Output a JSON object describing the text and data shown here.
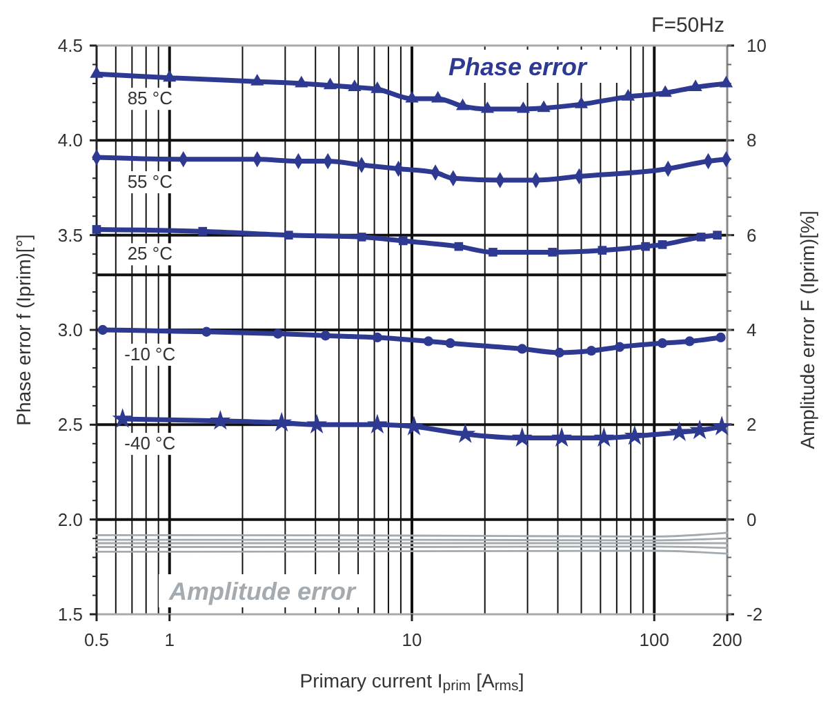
{
  "chart_data": {
    "type": "line",
    "xlabel": "Primary current I$_{prim}$ [A$_{rms}$]",
    "ylabel": "Phase error f (Iprim)[°]",
    "y2label": "Amplitude error F (Iprim)[%]",
    "log": "x",
    "xlim": [
      0.5,
      200
    ],
    "xticks": [
      0.5,
      1,
      10,
      100,
      200
    ],
    "ylim": [
      1.5,
      4.5
    ],
    "yticks": [
      1.5,
      {
        "value": 2,
        "label": "2.0"
      },
      2.5,
      {
        "value": 3,
        "label": "3.0"
      },
      3.5,
      {
        "value": 4,
        "label": "4.0"
      },
      4.5
    ],
    "y2lim": [
      -2,
      10
    ],
    "y2ticks": [
      -2,
      0,
      2,
      4,
      6,
      8,
      10
    ],
    "grid": true,
    "line_style": "solid",
    "ref_lines": [
      {
        "axis": "y",
        "value": 3.29
      }
    ],
    "annotations": [
      "F=50Hz",
      "Phase error",
      "Amplitude error"
    ],
    "series": [
      {
        "name": "85 °C",
        "color": "#2e3a92",
        "marker": "triangle",
        "x": [
          0.5,
          1,
          2.3,
          3.5,
          4.6,
          5.8,
          7.2,
          10,
          12.8,
          16.2,
          20.5,
          28.8,
          35,
          50,
          78,
          111,
          148,
          198
        ],
        "values": [
          4.35,
          4.33,
          4.31,
          4.3,
          4.29,
          4.28,
          4.27,
          4.22,
          4.22,
          4.18,
          4.165,
          4.165,
          4.17,
          4.19,
          4.23,
          4.25,
          4.28,
          4.3
        ]
      },
      {
        "name": "55 °C",
        "color": "#2e3a92",
        "marker": "diamond",
        "x": [
          0.5,
          1.14,
          2.3,
          3.4,
          4.5,
          6.2,
          8.8,
          12.5,
          14.8,
          23.1,
          32.5,
          49,
          114,
          167,
          198
        ],
        "values": [
          3.91,
          3.9,
          3.9,
          3.89,
          3.89,
          3.87,
          3.85,
          3.83,
          3.8,
          3.79,
          3.79,
          3.81,
          3.85,
          3.89,
          3.9
        ]
      },
      {
        "name": "25 °C",
        "color": "#2e3a92",
        "marker": "square",
        "x": [
          0.5,
          1.37,
          3.1,
          6.2,
          9.2,
          15.6,
          21.6,
          38,
          61,
          92,
          108,
          156,
          182
        ],
        "values": [
          3.53,
          3.52,
          3.5,
          3.49,
          3.47,
          3.44,
          3.41,
          3.41,
          3.42,
          3.44,
          3.45,
          3.49,
          3.5
        ]
      },
      {
        "name": "-10 °C",
        "color": "#2e3a92",
        "marker": "circle",
        "x": [
          0.53,
          1.42,
          2.8,
          4.4,
          7.2,
          11.7,
          14.4,
          28.5,
          40.6,
          55,
          72,
          108,
          140,
          188
        ],
        "values": [
          3.0,
          2.99,
          2.98,
          2.97,
          2.96,
          2.94,
          2.93,
          2.9,
          2.88,
          2.89,
          2.91,
          2.93,
          2.94,
          2.96
        ]
      },
      {
        "name": "-40 °C",
        "color": "#2e3a92",
        "marker": "star",
        "x": [
          0.64,
          1.62,
          2.9,
          4.05,
          7.2,
          10.2,
          16.6,
          28.5,
          41.5,
          62,
          83,
          127,
          154,
          190
        ],
        "values": [
          2.53,
          2.52,
          2.51,
          2.5,
          2.5,
          2.49,
          2.45,
          2.43,
          2.43,
          2.43,
          2.44,
          2.46,
          2.47,
          2.49
        ]
      },
      {
        "color": "#a3abb1",
        "axis": "y2",
        "marker": "none",
        "x": [
          0.5,
          1,
          10,
          100,
          200
        ],
        "values": [
          -0.33,
          -0.33,
          -0.34,
          -0.36,
          -0.28
        ]
      },
      {
        "color": "#a3abb1",
        "axis": "y2",
        "marker": "none",
        "x": [
          0.5,
          1,
          10,
          100,
          200
        ],
        "values": [
          -0.43,
          -0.43,
          -0.43,
          -0.44,
          -0.4
        ]
      },
      {
        "color": "#a3abb1",
        "axis": "y2",
        "marker": "none",
        "x": [
          0.5,
          1,
          10,
          100,
          200
        ],
        "values": [
          -0.5,
          -0.5,
          -0.5,
          -0.5,
          -0.5
        ]
      },
      {
        "color": "#a3abb1",
        "axis": "y2",
        "marker": "none",
        "x": [
          0.5,
          1,
          10,
          100,
          200
        ],
        "values": [
          -0.58,
          -0.58,
          -0.58,
          -0.57,
          -0.6
        ]
      },
      {
        "color": "#a3abb1",
        "axis": "y2",
        "marker": "none",
        "x": [
          0.5,
          1,
          10,
          100,
          200
        ],
        "values": [
          -0.68,
          -0.68,
          -0.67,
          -0.66,
          -0.72
        ]
      }
    ]
  }
}
